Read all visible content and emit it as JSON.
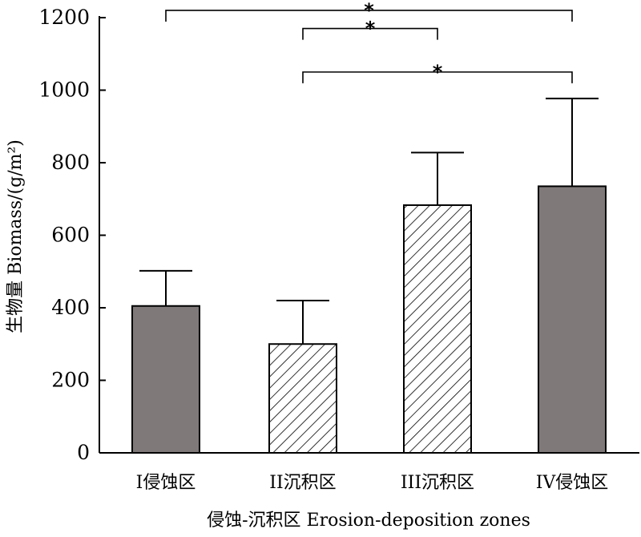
{
  "chart_data": {
    "type": "bar",
    "categories": [
      "I侵蚀区",
      "II沉积区",
      "III沉积区",
      "IV侵蚀区"
    ],
    "values": [
      405,
      300,
      683,
      735
    ],
    "error_upper": [
      502,
      420,
      828,
      977
    ],
    "patterns": [
      "solid",
      "hatch",
      "hatch",
      "solid"
    ],
    "colors": {
      "solid": "#7f7979",
      "hatch_fill": "#ffffff",
      "stroke": "#000000"
    },
    "ylim": [
      0,
      1200
    ],
    "yticks": [
      0,
      200,
      400,
      600,
      800,
      1000,
      1200
    ],
    "ytick_labels": [
      "0",
      "200",
      "400",
      "600",
      "800",
      "1000",
      "1200"
    ],
    "xlabel": "侵蚀-沉积区 Erosion-deposition zones",
    "ylabel": "生物量 Biomass/(g/m²)",
    "significance": [
      {
        "from": 0,
        "to": 3,
        "y_level": 1220,
        "label": "*"
      },
      {
        "from": 1,
        "to": 2,
        "y_level": 1170,
        "label": "*"
      },
      {
        "from": 1,
        "to": 3,
        "y_level": 1050,
        "label": "*"
      }
    ],
    "grid": false,
    "legend": "none"
  }
}
